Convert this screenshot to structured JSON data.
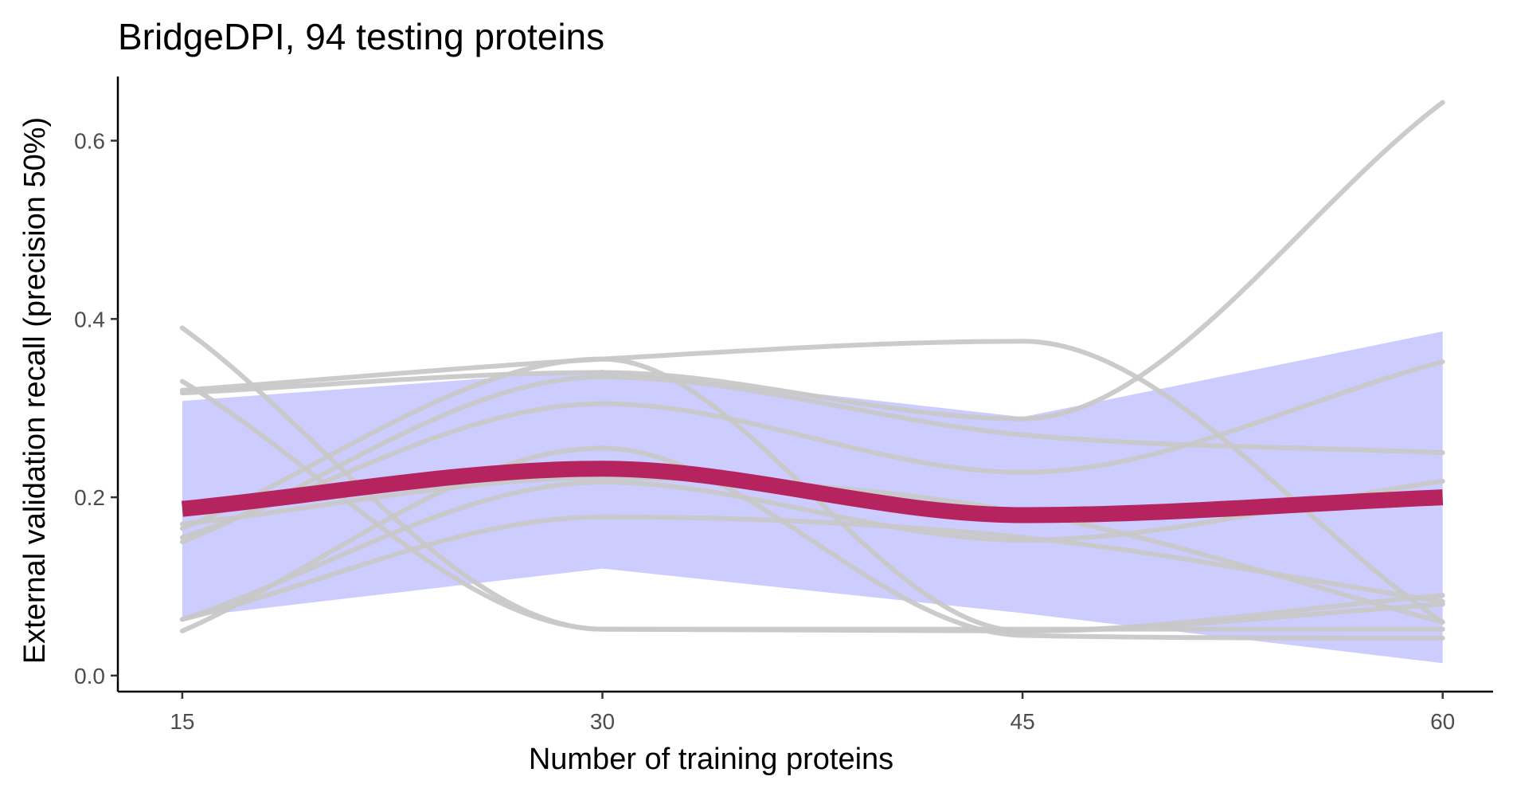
{
  "chart_data": {
    "type": "line",
    "title": "BridgeDPI, 94 testing proteins",
    "xlabel": "Number of training proteins",
    "ylabel": "External validation recall (precision 50%)",
    "x": [
      15,
      30,
      45,
      60
    ],
    "xticks": [
      15,
      30,
      45,
      60
    ],
    "yticks": [
      0.0,
      0.2,
      0.4,
      0.6
    ],
    "ytick_labels": [
      "0.0",
      "0.2",
      "0.4",
      "0.6"
    ],
    "xlim": [
      12.7,
      61.8
    ],
    "ylim": [
      -0.018,
      0.672
    ],
    "grid": false,
    "legend": "none",
    "colors": {
      "individual": "#c8c8c8",
      "mean": "#b5245f",
      "band": "#ccccff",
      "axis": "#000000"
    },
    "band": {
      "upper": [
        0.308,
        0.343,
        0.29,
        0.386
      ],
      "lower": [
        0.065,
        0.12,
        0.07,
        0.014
      ]
    },
    "individual_series": [
      {
        "values": [
          0.39,
          0.052,
          0.052,
          0.052
        ]
      },
      {
        "values": [
          0.05,
          0.255,
          0.045,
          0.042
        ]
      },
      {
        "values": [
          0.32,
          0.355,
          0.375,
          0.06
        ]
      },
      {
        "values": [
          0.317,
          0.34,
          0.288,
          0.643
        ]
      },
      {
        "values": [
          0.15,
          0.335,
          0.27,
          0.25
        ]
      },
      {
        "values": [
          0.155,
          0.305,
          0.228,
          0.352
        ]
      },
      {
        "values": [
          0.33,
          0.052,
          0.05,
          0.09
        ]
      },
      {
        "values": [
          0.063,
          0.217,
          0.152,
          0.218
        ]
      },
      {
        "values": [
          0.063,
          0.178,
          0.155,
          0.083
        ]
      },
      {
        "values": [
          0.165,
          0.355,
          0.05,
          0.08
        ]
      },
      {
        "values": [
          0.17,
          0.222,
          0.183,
          0.06
        ]
      }
    ],
    "mean_series": {
      "values": [
        0.187,
        0.232,
        0.18,
        0.2
      ]
    }
  }
}
